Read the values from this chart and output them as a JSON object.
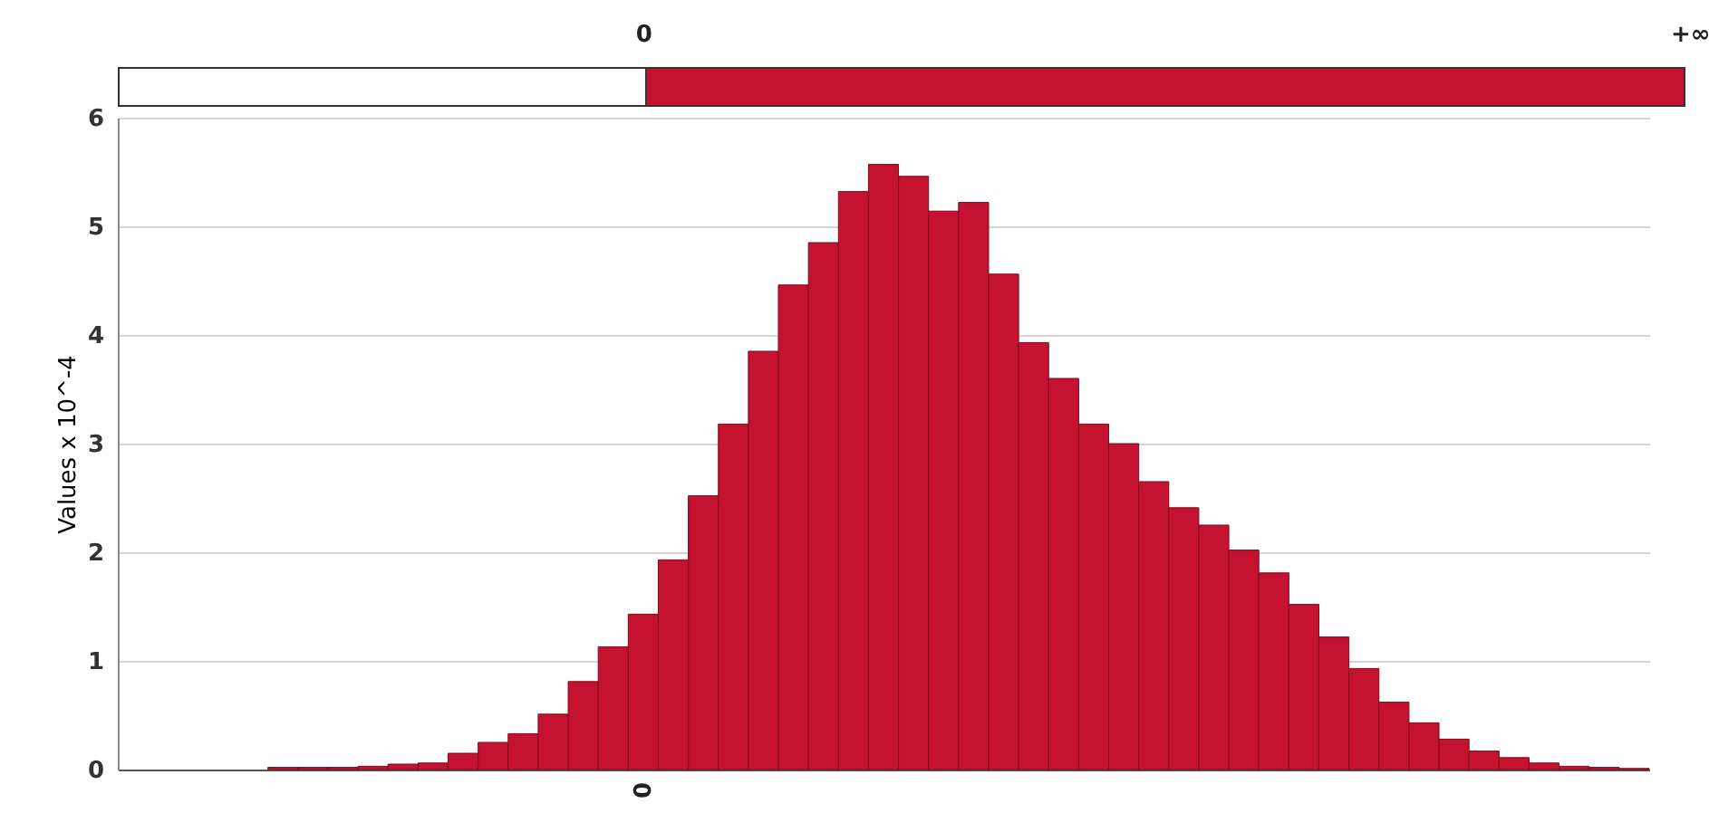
{
  "chart_data": {
    "type": "bar",
    "ylabel": "Values x 10^-4",
    "color": "#c41230",
    "categories": [
      null,
      null,
      null,
      null,
      null,
      null,
      null,
      null,
      null,
      null,
      null,
      null,
      null,
      null,
      null,
      null,
      null,
      null,
      null,
      null,
      null,
      null,
      null,
      null,
      null,
      null,
      null,
      null,
      null,
      null,
      null,
      null,
      null,
      null,
      null,
      null,
      null,
      null,
      null,
      null,
      null,
      null,
      null,
      null,
      null,
      null,
      null,
      null,
      null,
      null,
      null
    ],
    "values": [
      null,
      null,
      null,
      null,
      null,
      0.02,
      0.02,
      0.02,
      0.03,
      0.05,
      0.06,
      0.15,
      0.25,
      0.33,
      0.51,
      0.81,
      1.13,
      1.43,
      1.93,
      2.52,
      3.18,
      3.85,
      4.46,
      4.85,
      5.32,
      5.57,
      5.46,
      5.14,
      5.22,
      4.56,
      3.93,
      3.6,
      3.18,
      3.0,
      2.65,
      2.41,
      2.25,
      2.02,
      1.81,
      1.52,
      1.22,
      0.93,
      0.62,
      0.43,
      0.28,
      0.17,
      0.11,
      0.06,
      0.03,
      0.02,
      0.01
    ],
    "ylim": [
      0,
      6
    ],
    "yticks": [
      0,
      1,
      2,
      3,
      4,
      5,
      6
    ],
    "grid": "y",
    "annotations": [
      "0",
      "+∞",
      "0"
    ]
  }
}
